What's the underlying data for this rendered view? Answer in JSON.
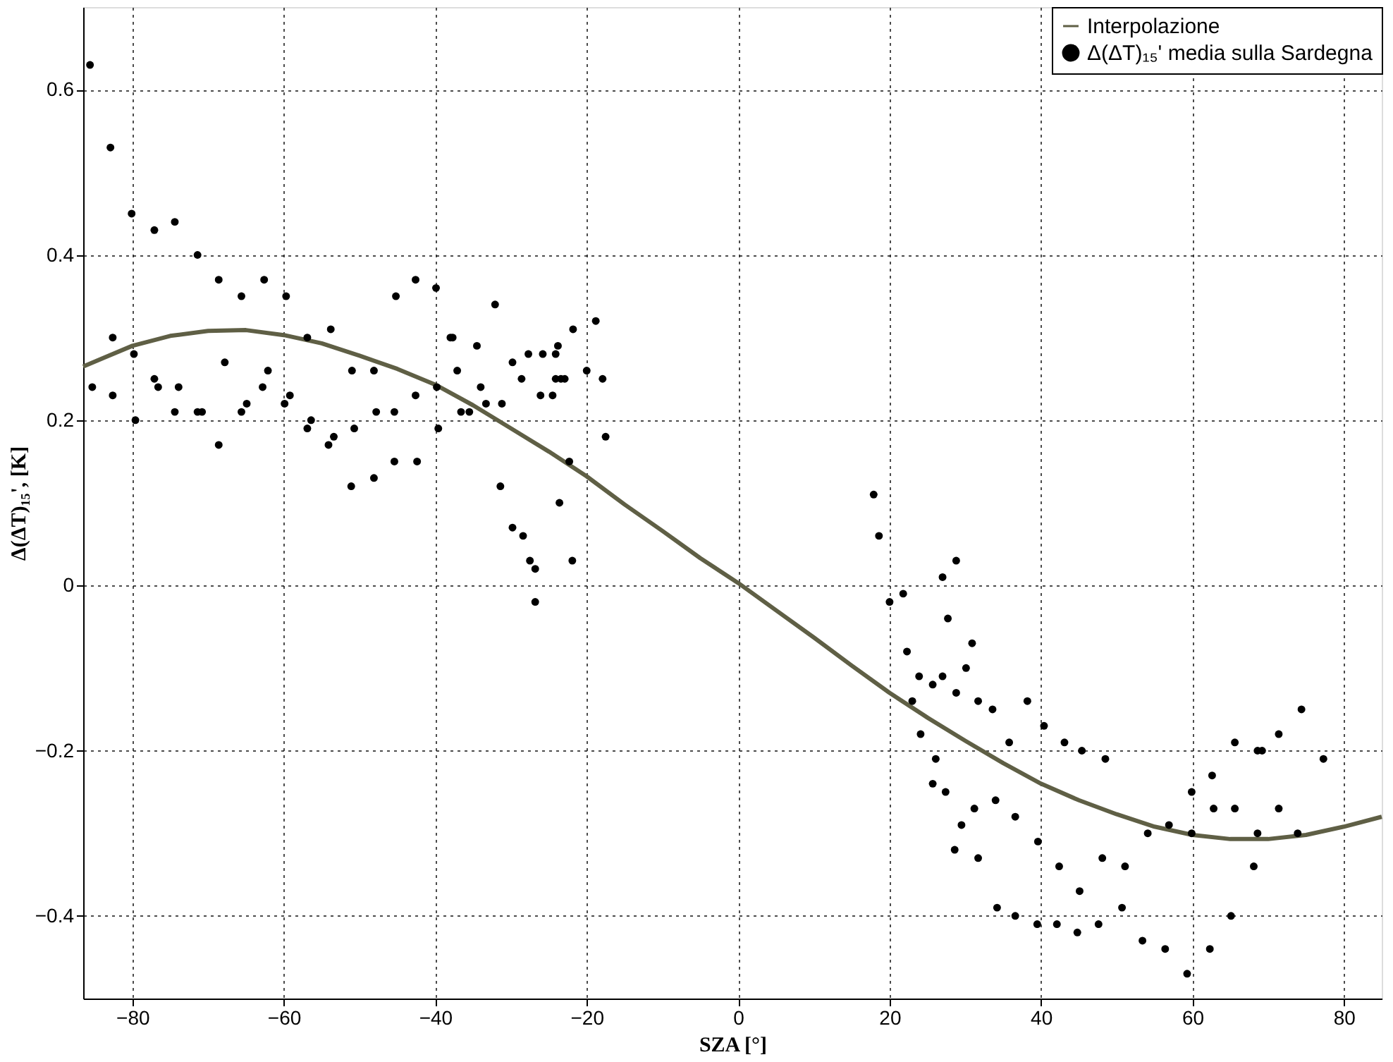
{
  "chart_data": {
    "type": "scatter",
    "xlabel": "SZA [°]",
    "ylabel": "Δ(ΔT)₁₅', [K]",
    "xlim": [
      -86.5,
      85
    ],
    "ylim": [
      -0.5,
      0.7
    ],
    "xticks": [
      -80,
      -60,
      -40,
      -20,
      0,
      20,
      40,
      60,
      80
    ],
    "yticks": [
      -0.4,
      -0.2,
      0,
      0.2,
      0.4,
      0.6
    ],
    "grid": true,
    "legend": "top right",
    "series": [
      {
        "name": "Interpolazione",
        "type": "line",
        "color": "#5f5f45",
        "line_style": "solid",
        "marker": "none",
        "x": [
          -86.5,
          -80,
          -75,
          -70,
          -65,
          -60,
          -55,
          -50,
          -45,
          -40,
          -35,
          -30,
          -25,
          -20,
          -15,
          -10,
          -5,
          0,
          5,
          10,
          15,
          20,
          25,
          30,
          35,
          40,
          45,
          50,
          55,
          60,
          65,
          70,
          75,
          80,
          85
        ],
        "values": [
          0.265,
          0.29,
          0.302,
          0.308,
          0.309,
          0.303,
          0.293,
          0.278,
          0.262,
          0.243,
          0.218,
          0.19,
          0.162,
          0.132,
          0.098,
          0.066,
          0.033,
          0.003,
          -0.03,
          -0.063,
          -0.097,
          -0.13,
          -0.16,
          -0.188,
          -0.215,
          -0.24,
          -0.26,
          -0.277,
          -0.292,
          -0.302,
          -0.307,
          -0.307,
          -0.302,
          -0.292,
          -0.28
        ]
      },
      {
        "name": "Δ(ΔT)₁₅' media sulla Sardegna",
        "color": "#000000",
        "marker": "circle",
        "x": [
          -85.6,
          -82.9,
          -80.1,
          -77.1,
          -74.4,
          -71.4,
          -68.6,
          -65.6,
          -62.6,
          -59.7,
          -45.2,
          -42.6,
          -39.9,
          -82.6,
          -79.8,
          -85.3,
          -82.6,
          -79.6,
          -77.1,
          -76.6,
          -73.9,
          -74.4,
          -71.4,
          -70.8,
          -68.6,
          -67.8,
          -65.6,
          -64.9,
          -62.8,
          -62.1,
          -59.9,
          -59.2,
          -56.9,
          -53.8,
          -56.9,
          -56.4,
          -54.1,
          -53.4,
          -51.0,
          -48.1,
          -50.7,
          -51.1,
          -48.1,
          -47.8,
          -45.4,
          -45.4,
          -42.4,
          -42.6,
          -39.8,
          -39.6,
          -38.0,
          -32.1,
          -37.7,
          -34.5,
          -37.1,
          -34.0,
          -33.3,
          -31.2,
          -36.6,
          -35.5,
          -29.8,
          -27.7,
          -25.8,
          -24.1,
          -23.8,
          -21.8,
          -18.8,
          -28.6,
          -26.1,
          -24.5,
          -24.1,
          -23.4,
          -22.9,
          -20.0,
          -17.9,
          -17.5,
          -22.3,
          -31.4,
          -23.6,
          -29.8,
          -28.4,
          -27.5,
          -26.8,
          -21.9,
          -26.8,
          17.9,
          18.6,
          20.0,
          21.8,
          27.0,
          28.8,
          27.7,
          30.9,
          22.3,
          23.9,
          25.7,
          27.0,
          30.1,
          28.8,
          31.7,
          33.6,
          38.2,
          23.0,
          24.1,
          40.4,
          35.8,
          43.1,
          45.4,
          26.1,
          25.7,
          27.4,
          31.2,
          34.0,
          36.6,
          29.5,
          39.6,
          28.6,
          31.7,
          42.4,
          45.1,
          34.2,
          36.6,
          39.5,
          42.1,
          44.8,
          48.5,
          48.1,
          51.1,
          50.7,
          47.6,
          53.4,
          56.4,
          59.3,
          62.3,
          65.1,
          68.1,
          54.1,
          56.9,
          59.9,
          59.9,
          62.6,
          62.8,
          65.6,
          65.6,
          68.6,
          69.2,
          68.6,
          71.4,
          71.4,
          73.9,
          74.4,
          77.3
        ],
        "values": [
          0.63,
          0.53,
          0.45,
          0.43,
          0.44,
          0.4,
          0.37,
          0.35,
          0.37,
          0.35,
          0.35,
          0.37,
          0.36,
          0.3,
          0.28,
          0.24,
          0.23,
          0.2,
          0.25,
          0.24,
          0.24,
          0.21,
          0.21,
          0.21,
          0.17,
          0.27,
          0.21,
          0.22,
          0.24,
          0.26,
          0.22,
          0.23,
          0.3,
          0.31,
          0.19,
          0.2,
          0.17,
          0.18,
          0.26,
          0.26,
          0.19,
          0.12,
          0.13,
          0.21,
          0.21,
          0.15,
          0.15,
          0.23,
          0.24,
          0.19,
          0.3,
          0.34,
          0.3,
          0.29,
          0.26,
          0.24,
          0.22,
          0.22,
          0.21,
          0.21,
          0.27,
          0.28,
          0.28,
          0.28,
          0.29,
          0.31,
          0.32,
          0.25,
          0.23,
          0.23,
          0.25,
          0.25,
          0.25,
          0.26,
          0.25,
          0.18,
          0.15,
          0.12,
          0.1,
          0.07,
          0.06,
          0.03,
          0.02,
          0.03,
          -0.02,
          0.11,
          0.06,
          -0.02,
          -0.01,
          0.01,
          0.03,
          -0.04,
          -0.07,
          -0.08,
          -0.11,
          -0.12,
          -0.11,
          -0.1,
          -0.13,
          -0.14,
          -0.15,
          -0.14,
          -0.14,
          -0.18,
          -0.17,
          -0.19,
          -0.19,
          -0.2,
          -0.21,
          -0.24,
          -0.25,
          -0.27,
          -0.26,
          -0.28,
          -0.29,
          -0.31,
          -0.32,
          -0.33,
          -0.34,
          -0.37,
          -0.39,
          -0.4,
          -0.41,
          -0.41,
          -0.42,
          -0.21,
          -0.33,
          -0.34,
          -0.39,
          -0.41,
          -0.43,
          -0.44,
          -0.47,
          -0.44,
          -0.4,
          -0.34,
          -0.3,
          -0.29,
          -0.3,
          -0.25,
          -0.23,
          -0.27,
          -0.27,
          -0.19,
          -0.2,
          -0.2,
          -0.3,
          -0.18,
          -0.27,
          -0.3,
          -0.15,
          -0.21
        ]
      }
    ]
  }
}
